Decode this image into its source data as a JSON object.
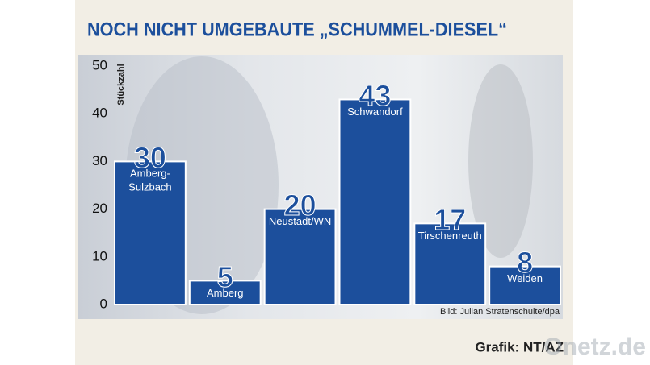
{
  "chart_data": {
    "type": "bar",
    "title": "NOCH NICHT UMGEBAUTE „SCHUMMEL-DIESEL“",
    "ylabel": "Stückzahl",
    "categories": [
      "Amberg-Sulzbach",
      "Amberg",
      "Neustadt/WN",
      "Schwandorf",
      "Tirschenreuth",
      "Weiden"
    ],
    "values": [
      30,
      5,
      20,
      43,
      17,
      8
    ],
    "color": "#1c4f9c",
    "ylim": [
      0,
      50
    ],
    "yticks": [
      0,
      10,
      20,
      30,
      40,
      50
    ],
    "photo_credit": "Bild: Julian Stratenschulte/dpa",
    "credit": "Grafik: NT/AZ",
    "watermark": "Onetz.de"
  }
}
